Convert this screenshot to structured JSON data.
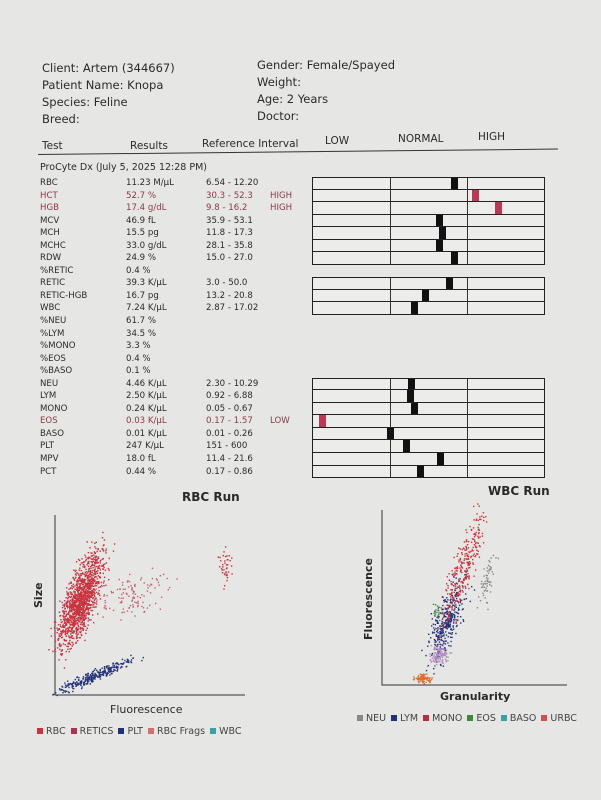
{
  "patient": {
    "client": "Client: Artem (344667)",
    "patient_name": "Patient Name: Knopa",
    "species": "Species: Feline",
    "breed": "Breed:",
    "gender": "Gender: Female/Spayed",
    "weight": "Weight:",
    "age": "Age: 2 Years",
    "doctor": "Doctor:"
  },
  "columns": {
    "test": "Test",
    "results": "Results",
    "reference": "Reference Interval",
    "low": "LOW",
    "normal": "NORMAL",
    "high": "HIGH"
  },
  "run_title": "ProCyte Dx (July 5, 2025 12:28 PM)",
  "colors": {
    "abnormal": "#b83a55",
    "marker": "#111111"
  },
  "tests": [
    {
      "name": "RBC",
      "result": "11.23 M/µL",
      "value": 11.23,
      "ref": "6.54 - 12.20",
      "lo": 6.54,
      "hi": 12.2,
      "flag": "",
      "group_start": true
    },
    {
      "name": "HCT",
      "result": "52.7 %",
      "value": 52.7,
      "ref": "30.3 - 52.3",
      "lo": 30.3,
      "hi": 52.3,
      "flag": "HIGH"
    },
    {
      "name": "HGB",
      "result": "17.4 g/dL",
      "value": 17.4,
      "ref": "9.8 - 16.2",
      "lo": 9.8,
      "hi": 16.2,
      "flag": "HIGH"
    },
    {
      "name": "MCV",
      "result": "46.9 fL",
      "value": 46.9,
      "ref": "35.9 - 53.1",
      "lo": 35.9,
      "hi": 53.1,
      "flag": ""
    },
    {
      "name": "MCH",
      "result": "15.5 pg",
      "value": 15.5,
      "ref": "11.8 - 17.3",
      "lo": 11.8,
      "hi": 17.3,
      "flag": ""
    },
    {
      "name": "MCHC",
      "result": "33.0 g/dL",
      "value": 33.0,
      "ref": "28.1 - 35.8",
      "lo": 28.1,
      "hi": 35.8,
      "flag": ""
    },
    {
      "name": "RDW",
      "result": "24.9 %",
      "value": 24.9,
      "ref": "15.0 - 27.0",
      "lo": 15.0,
      "hi": 27.0,
      "flag": ""
    },
    {
      "name": "%RETIC",
      "result": "0.4 %",
      "ref": "",
      "flag": ""
    },
    {
      "name": "RETIC",
      "result": "39.3 K/µL",
      "value": 39.3,
      "ref": "3.0 - 50.0",
      "lo": 3.0,
      "hi": 50.0,
      "flag": "",
      "group_start": true
    },
    {
      "name": "RETIC-HGB",
      "result": "16.7 pg",
      "value": 16.7,
      "ref": "13.2 - 20.8",
      "lo": 13.2,
      "hi": 20.8,
      "flag": ""
    },
    {
      "name": "WBC",
      "result": "7.24 K/µL",
      "value": 7.24,
      "ref": "2.87 - 17.02",
      "lo": 2.87,
      "hi": 17.02,
      "flag": ""
    },
    {
      "name": "%NEU",
      "result": "61.7 %",
      "ref": "",
      "flag": ""
    },
    {
      "name": "%LYM",
      "result": "34.5 %",
      "ref": "",
      "flag": ""
    },
    {
      "name": "%MONO",
      "result": "3.3 %",
      "ref": "",
      "flag": ""
    },
    {
      "name": "%EOS",
      "result": "0.4 %",
      "ref": "",
      "flag": ""
    },
    {
      "name": "%BASO",
      "result": "0.1 %",
      "ref": "",
      "flag": ""
    },
    {
      "name": "NEU",
      "result": "4.46 K/µL",
      "value": 4.46,
      "ref": "2.30 - 10.29",
      "lo": 2.3,
      "hi": 10.29,
      "flag": "",
      "group_start": true
    },
    {
      "name": "LYM",
      "result": "2.50 K/µL",
      "value": 2.5,
      "ref": "0.92 - 6.88",
      "lo": 0.92,
      "hi": 6.88,
      "flag": ""
    },
    {
      "name": "MONO",
      "result": "0.24 K/µL",
      "value": 0.24,
      "ref": "0.05 - 0.67",
      "lo": 0.05,
      "hi": 0.67,
      "flag": ""
    },
    {
      "name": "EOS",
      "result": "0.03 K/µL",
      "value": 0.03,
      "ref": "0.17 - 1.57",
      "lo": 0.17,
      "hi": 1.57,
      "flag": "LOW"
    },
    {
      "name": "BASO",
      "result": "0.01 K/µL",
      "value": 0.01,
      "ref": "0.01 - 0.26",
      "lo": 0.01,
      "hi": 0.26,
      "flag": ""
    },
    {
      "name": "PLT",
      "result": "247 K/µL",
      "value": 247,
      "ref": "151 - 600",
      "lo": 151,
      "hi": 600,
      "flag": ""
    },
    {
      "name": "MPV",
      "result": "18.0 fL",
      "value": 18.0,
      "ref": "11.4 - 21.6",
      "lo": 11.4,
      "hi": 21.6,
      "flag": ""
    },
    {
      "name": "PCT",
      "result": "0.44 %",
      "value": 0.44,
      "ref": "0.17 - 0.86",
      "lo": 0.17,
      "hi": 0.86,
      "flag": ""
    }
  ],
  "rbc_run": {
    "title": "RBC Run",
    "xlabel": "Fluorescence",
    "ylabel": "Size",
    "legend": [
      {
        "label": "RBC",
        "color": "#c8323f"
      },
      {
        "label": "RETICS",
        "color": "#a8324f"
      },
      {
        "label": "PLT",
        "color": "#22307a"
      },
      {
        "label": "RBC Frags",
        "color": "#d07070"
      },
      {
        "label": "WBC",
        "color": "#3aa0a8"
      }
    ]
  },
  "wbc_run": {
    "title": "WBC Run",
    "xlabel": "Granularity",
    "ylabel": "Fluorescence",
    "legend": [
      {
        "label": "NEU",
        "color": "#888888"
      },
      {
        "label": "LYM",
        "color": "#22307a"
      },
      {
        "label": "MONO",
        "color": "#b03040"
      },
      {
        "label": "EOS",
        "color": "#3a8a3a"
      },
      {
        "label": "BASO",
        "color": "#3aa0a8"
      },
      {
        "label": "URBC",
        "color": "#d05050"
      }
    ]
  }
}
